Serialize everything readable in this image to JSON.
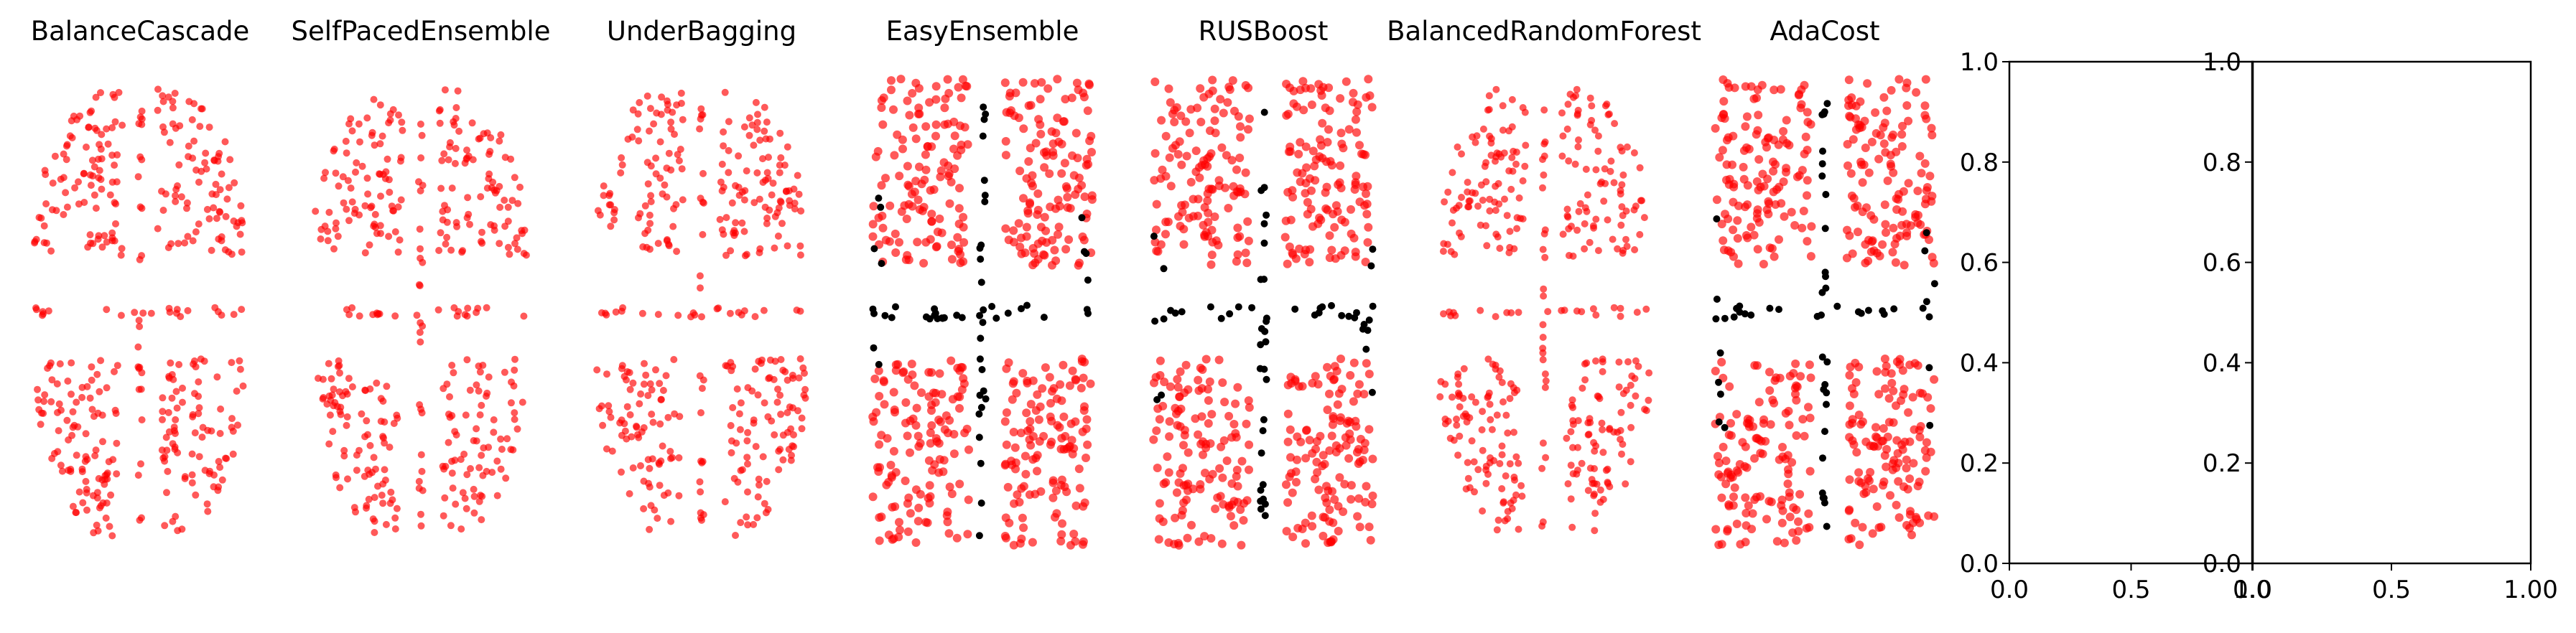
{
  "figure": {
    "marker_colors": {
      "red": "#ff0000",
      "black": "#000000"
    }
  },
  "chart_data": [
    {
      "type": "scatter",
      "title": "BalanceCascade",
      "pattern": "sparse",
      "black_points": false,
      "axes_visible": false
    },
    {
      "type": "scatter",
      "title": "SelfPacedEnsemble",
      "pattern": "sparse",
      "black_points": false,
      "axes_visible": false
    },
    {
      "type": "scatter",
      "title": "UnderBagging",
      "pattern": "sparse",
      "black_points": false,
      "axes_visible": false
    },
    {
      "type": "scatter",
      "title": "EasyEnsemble",
      "pattern": "dense",
      "black_points": true,
      "axes_visible": false
    },
    {
      "type": "scatter",
      "title": "RUSBoost",
      "pattern": "dense",
      "black_points": true,
      "axes_visible": false
    },
    {
      "type": "scatter",
      "title": "BalancedRandomForest",
      "pattern": "sparse",
      "black_points": false,
      "axes_visible": false
    },
    {
      "type": "scatter",
      "title": "AdaCost",
      "pattern": "dense",
      "black_points": true,
      "axes_visible": false
    },
    {
      "type": "scatter",
      "title": "",
      "axes_visible": true,
      "points": [],
      "xlim": [
        0.0,
        1.0
      ],
      "ylim": [
        0.0,
        1.0
      ],
      "xticks": [
        "0.0",
        "0.5",
        "1.0"
      ],
      "yticks": [
        "0.0",
        "0.2",
        "0.4",
        "0.6",
        "0.8",
        "1.0"
      ]
    },
    {
      "type": "scatter",
      "title": "",
      "axes_visible": true,
      "points": [],
      "xlim": [
        0.0,
        1.0
      ],
      "ylim": [
        0.0,
        1.0
      ],
      "xticks": [
        "0.0",
        "0.5",
        "1.00"
      ],
      "yticks": [
        "0.0",
        "0.2",
        "0.4",
        "0.6",
        "0.8",
        "1.0"
      ]
    }
  ]
}
